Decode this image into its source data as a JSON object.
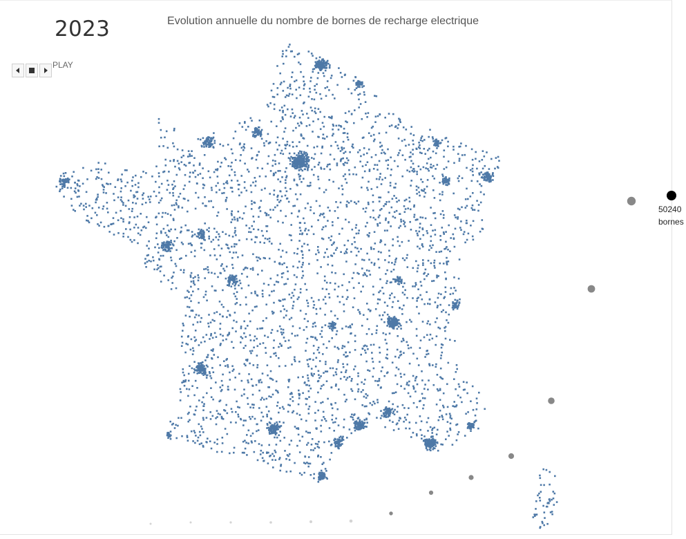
{
  "header": {
    "year": "2023",
    "title": "Evolution annuelle du nombre de bornes de recharge electrique",
    "play_label": "PLAY"
  },
  "colors": {
    "points": "#4e79a7",
    "timeline_past": "#888888",
    "timeline_current": "#000000",
    "timeline_faint": "#d4d4d4"
  },
  "icons": [
    "back-icon",
    "stop-icon",
    "forward-icon"
  ],
  "chart_data": {
    "type": "scatter",
    "title": "Evolution annuelle du nombre de bornes de recharge electrique",
    "current_year": "2023",
    "map": "France",
    "series": [
      {
        "values_label": "bornes de recharge (points géolocalisés)"
      }
    ],
    "timeline_annotation": {
      "value_label": "50240",
      "unit_label": "bornes"
    },
    "timeline_point_count": 14
  }
}
